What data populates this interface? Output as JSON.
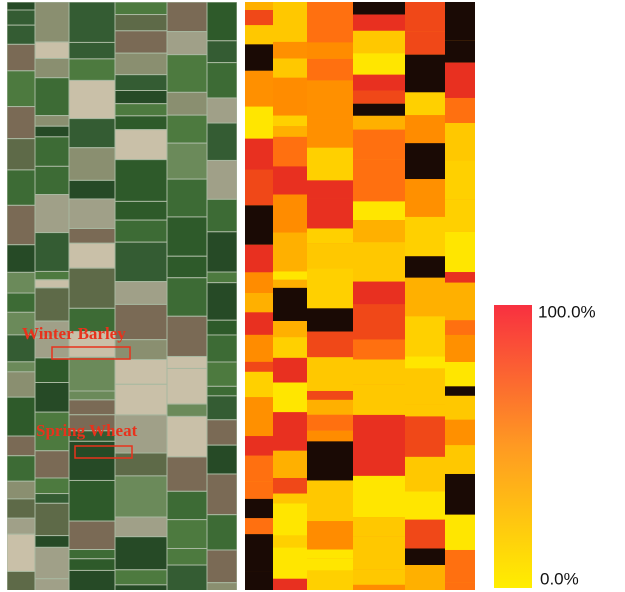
{
  "annotations": {
    "winter_barley": "Winter Barley",
    "spring_wheat": "Spring Wheat"
  },
  "colorbar": {
    "max_label": "100.0%",
    "min_label": "0.0%"
  }
}
